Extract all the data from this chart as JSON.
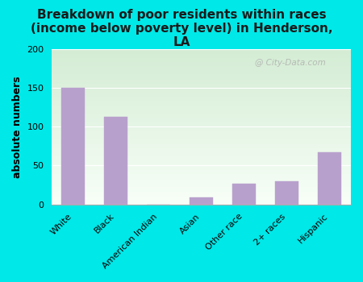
{
  "title": "Breakdown of poor residents within races\n(income below poverty level) in Henderson,\nLA",
  "categories": [
    "White",
    "Black",
    "American Indian",
    "Asian",
    "Other race",
    "2+ races",
    "Hispanic"
  ],
  "values": [
    150,
    113,
    0,
    9,
    27,
    30,
    67
  ],
  "bar_color": "#b8a0cc",
  "ylabel": "absolute numbers",
  "ylim": [
    0,
    200
  ],
  "yticks": [
    0,
    50,
    100,
    150,
    200
  ],
  "grad_top": "#d4ecd4",
  "grad_bottom": "#f8fff8",
  "outer_background": "#00e8e8",
  "watermark": "City-Data.com",
  "title_fontsize": 11,
  "ylabel_fontsize": 9,
  "tick_fontsize": 8
}
